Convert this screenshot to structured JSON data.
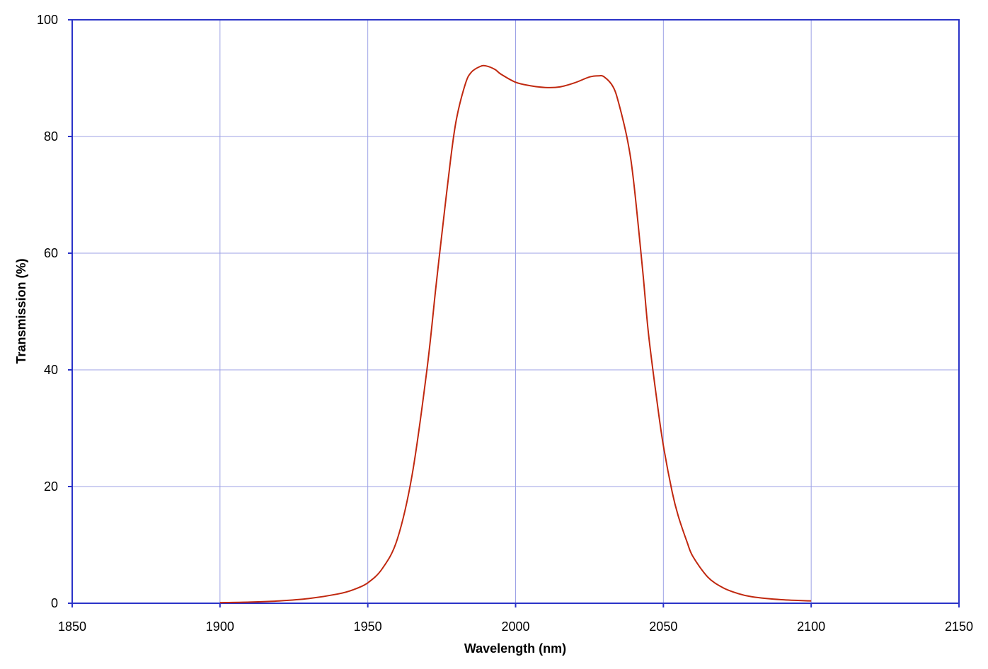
{
  "chart_data": {
    "type": "line",
    "xlabel": "Wavelength (nm)",
    "ylabel": "Transmission (%)",
    "xlim": [
      1850,
      2150
    ],
    "ylim": [
      0,
      100
    ],
    "x_ticks": [
      1850,
      1900,
      1950,
      2000,
      2050,
      2100,
      2150
    ],
    "y_ticks": [
      0,
      20,
      40,
      60,
      80,
      100
    ],
    "grid": true,
    "legend": "none",
    "colors": {
      "line": "#c0280f",
      "frame": "#2a33c8",
      "grid": "#9da2e6"
    },
    "series": [
      {
        "x": [
          1900,
          1910,
          1920,
          1930,
          1940,
          1945,
          1950,
          1955,
          1960,
          1965,
          1970,
          1973,
          1975,
          1978,
          1980,
          1983,
          1985,
          1988,
          1990,
          1993,
          1995,
          2000,
          2005,
          2010,
          2015,
          2020,
          2025,
          2028,
          2030,
          2033,
          2035,
          2038,
          2040,
          2043,
          2045,
          2048,
          2050,
          2053,
          2055,
          2058,
          2060,
          2065,
          2070,
          2075,
          2080,
          2090,
          2100
        ],
        "y": [
          0.1,
          0.2,
          0.4,
          0.8,
          1.6,
          2.3,
          3.5,
          6.0,
          11.0,
          22.0,
          40.0,
          54.0,
          63.0,
          76.0,
          83.0,
          89.0,
          91.0,
          92.0,
          92.1,
          91.5,
          90.7,
          89.3,
          88.7,
          88.4,
          88.5,
          89.2,
          90.2,
          90.4,
          90.2,
          88.5,
          85.5,
          79.0,
          72.0,
          57.0,
          46.0,
          34.0,
          27.0,
          19.0,
          15.0,
          10.5,
          8.0,
          4.5,
          2.7,
          1.7,
          1.1,
          0.6,
          0.4
        ]
      }
    ]
  }
}
